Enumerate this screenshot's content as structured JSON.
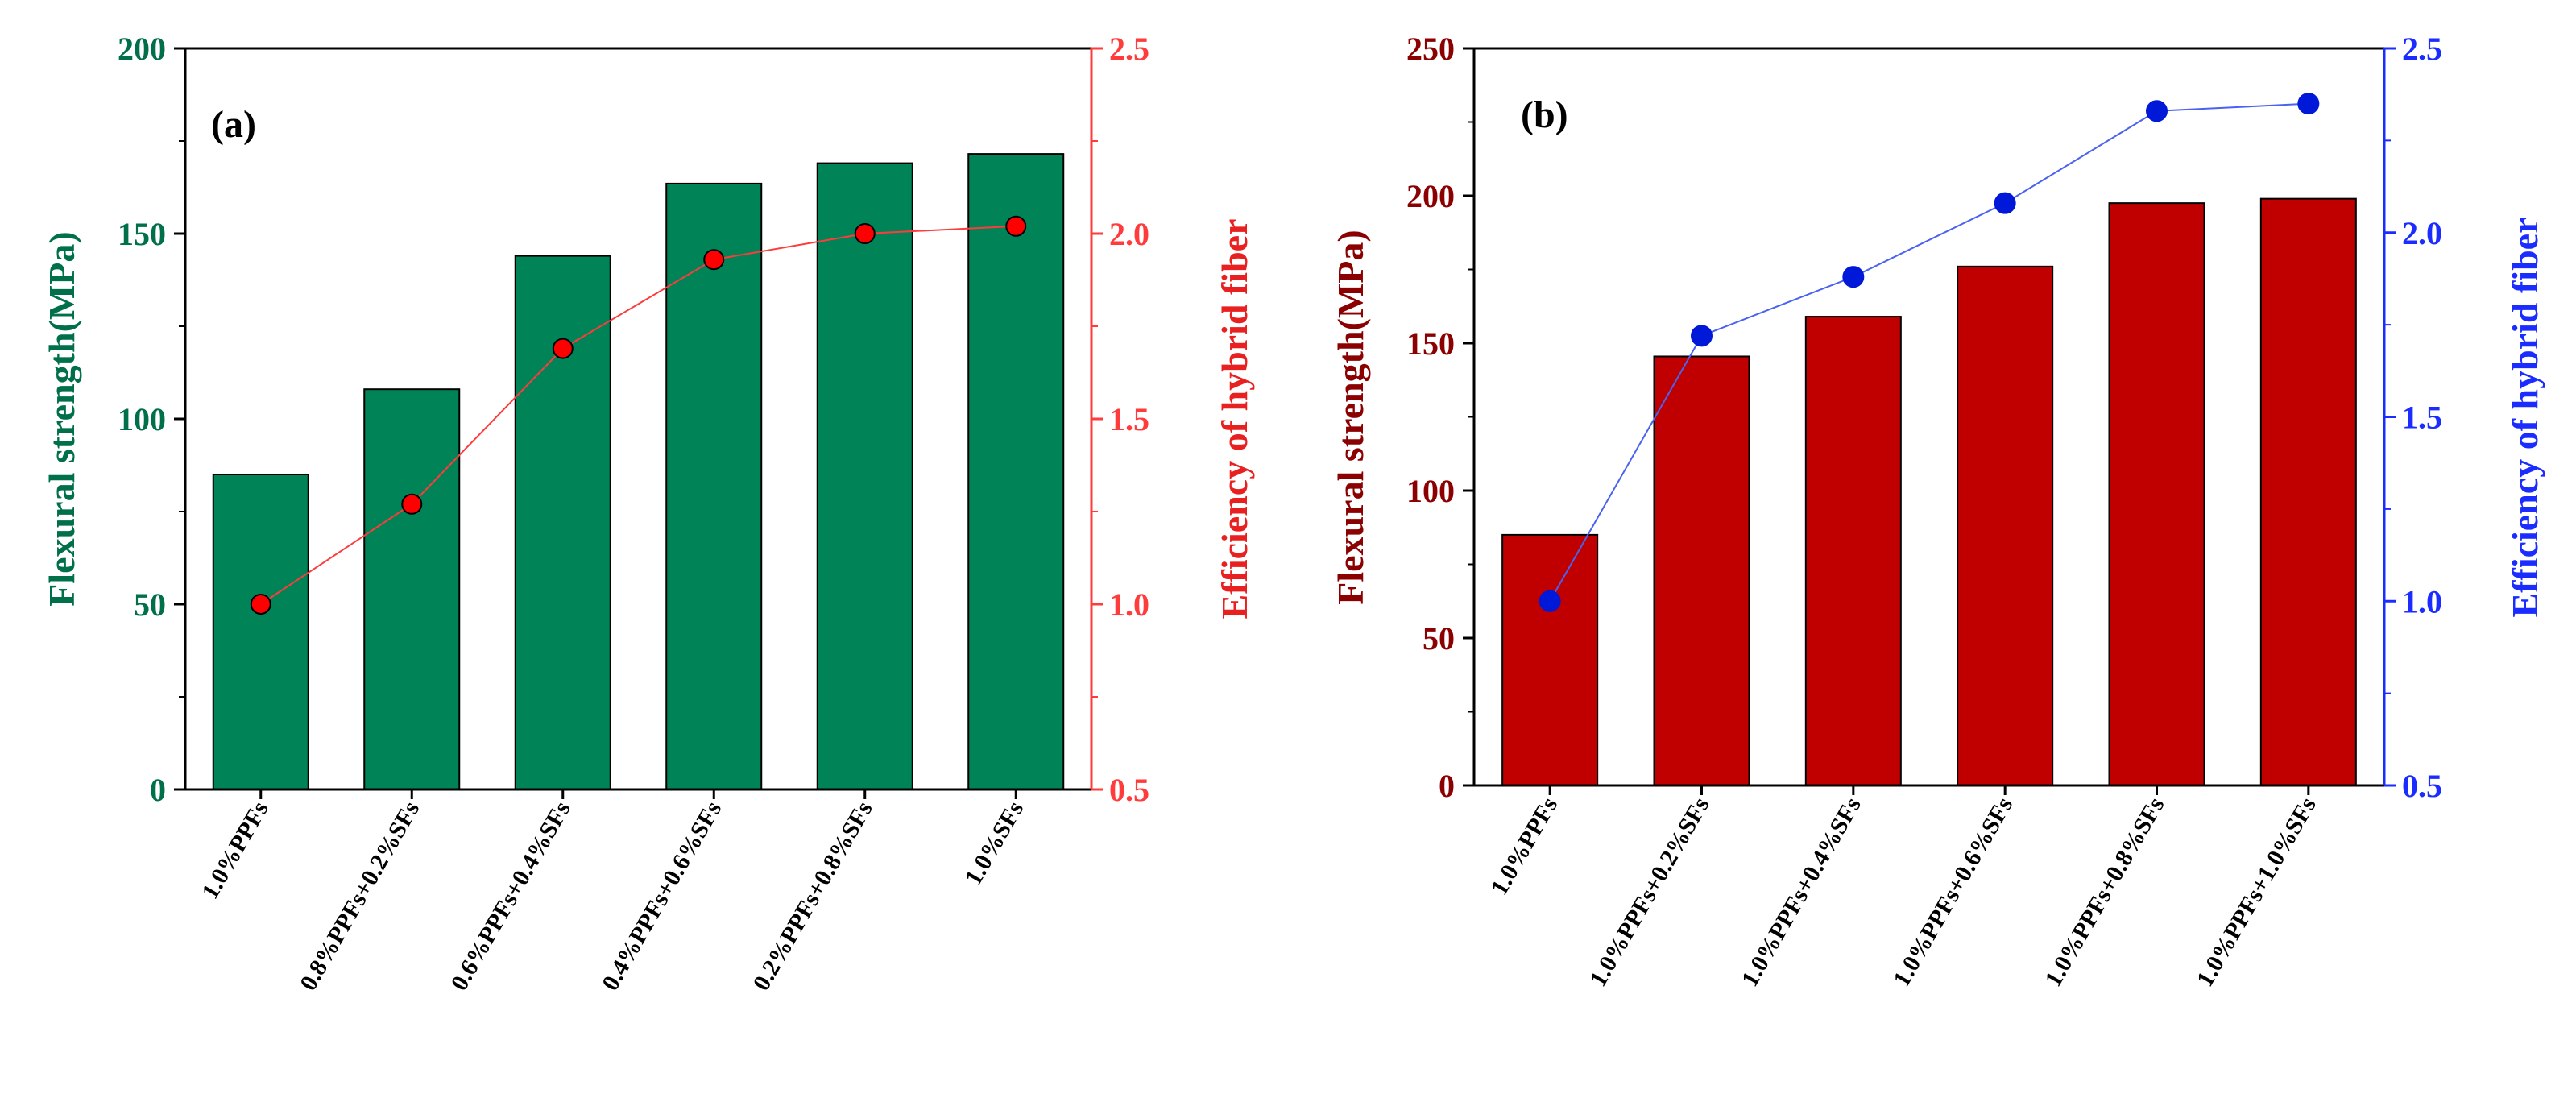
{
  "chart_data": [
    {
      "panel_label": "(a)",
      "type": "bar",
      "categories": [
        "1.0%PPFs",
        "0.8%PPFs+0.2%SFs",
        "0.6%PPFs+0.4%SFs",
        "0.4%PPFs+0.6%SFs",
        "0.2%PPFs+0.8%SFs",
        "1.0%SFs"
      ],
      "series": [
        {
          "name": "Flexural strength(MPa)",
          "type": "bar",
          "axis": "left",
          "values": [
            85,
            108,
            144,
            163.5,
            169,
            171.5
          ]
        },
        {
          "name": "Efficiency of hybrid fiber",
          "type": "line",
          "axis": "right",
          "values": [
            1.0,
            1.27,
            1.69,
            1.93,
            2.0,
            2.02
          ]
        }
      ],
      "ylabel": "Flexural strength(MPa)",
      "ylabel_right": "Efficiency of hybrid fiber",
      "ylim": [
        0,
        200
      ],
      "yticks": [
        "0",
        "50",
        "100",
        "150",
        "200"
      ],
      "ylim_right": [
        0.5,
        2.5
      ],
      "yticks_right": [
        "0.5",
        "1.0",
        "1.5",
        "2.0",
        "2.5"
      ],
      "bar_color": "#008457",
      "line_color": "#ff3b3b",
      "marker_color": "#ff0000",
      "left_axis_color": "#00704a",
      "right_axis_color": "#ff3b3b",
      "right_title_color": "#e82020"
    },
    {
      "panel_label": "(b)",
      "type": "bar",
      "categories": [
        "1.0%PPFs",
        "1.0%PPFs+0.2%SFs",
        "1.0%PPFs+0.4%SFs",
        "1.0%PPFs+0.6%SFs",
        "1.0%PPFs+0.8%SFs",
        "1.0%PPFs+1.0%SFs"
      ],
      "series": [
        {
          "name": "Flexural strength(MPa)",
          "type": "bar",
          "axis": "left",
          "values": [
            85,
            145.5,
            159,
            176,
            197.5,
            199
          ]
        },
        {
          "name": "Efficiency of hybrid fiber",
          "type": "line",
          "axis": "right",
          "values": [
            1.0,
            1.72,
            1.88,
            2.08,
            2.33,
            2.35
          ]
        }
      ],
      "ylabel": "Flexural strength(MPa)",
      "ylabel_right": "Efficiency of hybrid fiber",
      "ylim": [
        0,
        250
      ],
      "yticks": [
        "0",
        "50",
        "100",
        "150",
        "200",
        "250"
      ],
      "ylim_right": [
        0.5,
        2.5
      ],
      "yticks_right": [
        "0.5",
        "1.0",
        "1.5",
        "2.0",
        "2.5"
      ],
      "bar_color": "#c00000",
      "line_color": "#4a62f0",
      "marker_color": "#0018d8",
      "left_axis_color": "#8b0000",
      "right_axis_color": "#1a2cff",
      "right_title_color": "#1a2cff"
    }
  ]
}
